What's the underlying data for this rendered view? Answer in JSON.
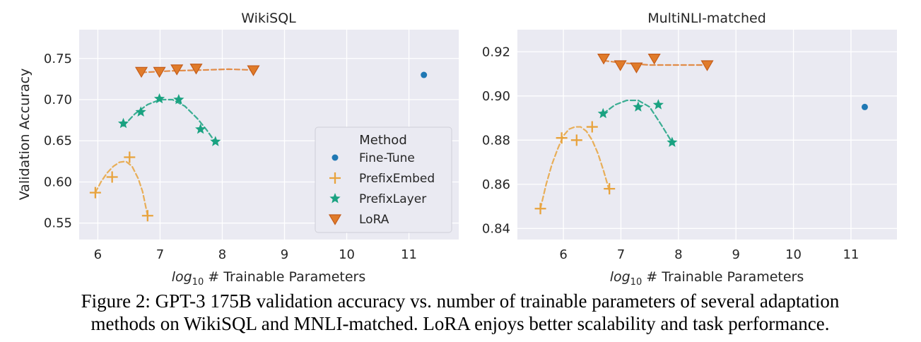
{
  "chart_data": [
    {
      "type": "scatter",
      "title": "WikiSQL",
      "xlabel_prefix": "log",
      "xlabel_sub": "10",
      "xlabel_rest": " # Trainable Parameters",
      "ylabel": "Validation Accuracy",
      "xlim": [
        5.7,
        11.8
      ],
      "ylim": [
        0.53,
        0.785
      ],
      "xticks": [
        6,
        7,
        8,
        9,
        10,
        11
      ],
      "yticks": [
        0.55,
        0.6,
        0.65,
        0.7,
        0.75
      ],
      "ytick_labels": [
        "0.55",
        "0.60",
        "0.65",
        "0.70",
        "0.75"
      ],
      "grid": true,
      "series": [
        {
          "name": "Fine-Tune",
          "marker": "dot",
          "x": [
            11.24
          ],
          "y": [
            0.73
          ],
          "fit": []
        },
        {
          "name": "PrefixEmbed",
          "marker": "plus",
          "x": [
            5.96,
            6.23,
            6.51,
            6.8
          ],
          "y": [
            0.587,
            0.606,
            0.63,
            0.559
          ],
          "fit": [
            [
              5.96,
              0.587
            ],
            [
              6.05,
              0.6
            ],
            [
              6.15,
              0.611
            ],
            [
              6.25,
              0.619
            ],
            [
              6.35,
              0.624
            ],
            [
              6.45,
              0.625
            ],
            [
              6.55,
              0.619
            ],
            [
              6.65,
              0.604
            ],
            [
              6.72,
              0.588
            ],
            [
              6.8,
              0.559
            ]
          ]
        },
        {
          "name": "PrefixLayer",
          "marker": "star",
          "x": [
            6.41,
            6.69,
            6.99,
            7.3,
            7.65,
            7.89
          ],
          "y": [
            0.671,
            0.685,
            0.701,
            0.7,
            0.664,
            0.649
          ],
          "fit": [
            [
              6.41,
              0.668
            ],
            [
              6.6,
              0.683
            ],
            [
              6.8,
              0.694
            ],
            [
              7.0,
              0.7
            ],
            [
              7.2,
              0.7
            ],
            [
              7.4,
              0.692
            ],
            [
              7.6,
              0.677
            ],
            [
              7.75,
              0.663
            ],
            [
              7.89,
              0.648
            ]
          ]
        },
        {
          "name": "LoRA",
          "marker": "triangle",
          "x": [
            6.7,
            6.99,
            7.27,
            7.58,
            8.5
          ],
          "y": [
            0.734,
            0.734,
            0.737,
            0.738,
            0.736
          ],
          "fit": [
            [
              6.7,
              0.733
            ],
            [
              7.2,
              0.735
            ],
            [
              7.7,
              0.736
            ],
            [
              8.1,
              0.737
            ],
            [
              8.5,
              0.736
            ]
          ]
        }
      ]
    },
    {
      "type": "scatter",
      "title": "MultiNLI-matched",
      "xlabel_prefix": "log",
      "xlabel_sub": "10",
      "xlabel_rest": " # Trainable Parameters",
      "ylabel": "",
      "xlim": [
        5.2,
        11.8
      ],
      "ylim": [
        0.835,
        0.93
      ],
      "xticks": [
        6,
        7,
        8,
        9,
        10,
        11
      ],
      "yticks": [
        0.84,
        0.86,
        0.88,
        0.9,
        0.92
      ],
      "ytick_labels": [
        "0.84",
        "0.86",
        "0.88",
        "0.90",
        "0.92"
      ],
      "grid": true,
      "series": [
        {
          "name": "Fine-Tune",
          "marker": "dot",
          "x": [
            11.24
          ],
          "y": [
            0.895
          ],
          "fit": []
        },
        {
          "name": "PrefixEmbed",
          "marker": "plus",
          "x": [
            5.6,
            5.97,
            6.23,
            6.5,
            6.8
          ],
          "y": [
            0.849,
            0.881,
            0.88,
            0.886,
            0.858
          ],
          "fit": [
            [
              5.6,
              0.849
            ],
            [
              5.7,
              0.86
            ],
            [
              5.8,
              0.869
            ],
            [
              5.9,
              0.876
            ],
            [
              6.0,
              0.882
            ],
            [
              6.1,
              0.885
            ],
            [
              6.2,
              0.886
            ],
            [
              6.3,
              0.886
            ],
            [
              6.4,
              0.884
            ],
            [
              6.5,
              0.88
            ],
            [
              6.6,
              0.874
            ],
            [
              6.7,
              0.866
            ],
            [
              6.8,
              0.857
            ]
          ]
        },
        {
          "name": "PrefixLayer",
          "marker": "star",
          "x": [
            6.69,
            7.3,
            7.65,
            7.89
          ],
          "y": [
            0.892,
            0.895,
            0.896,
            0.879
          ],
          "fit": [
            [
              6.69,
              0.892
            ],
            [
              6.9,
              0.896
            ],
            [
              7.1,
              0.898
            ],
            [
              7.3,
              0.898
            ],
            [
              7.5,
              0.895
            ],
            [
              7.7,
              0.887
            ],
            [
              7.89,
              0.879
            ]
          ]
        },
        {
          "name": "LoRA",
          "marker": "triangle",
          "x": [
            6.7,
            6.99,
            7.27,
            7.58,
            8.5
          ],
          "y": [
            0.917,
            0.914,
            0.913,
            0.917,
            0.914
          ],
          "fit": [
            [
              6.7,
              0.916
            ],
            [
              7.0,
              0.915
            ],
            [
              7.5,
              0.914
            ],
            [
              8.0,
              0.914
            ],
            [
              8.5,
              0.914
            ]
          ]
        }
      ]
    }
  ],
  "legend": {
    "title": "Method",
    "placement": "bottom-right of WikiSQL panel",
    "entries": [
      "Fine-Tune",
      "PrefixEmbed",
      "PrefixLayer",
      "LoRA"
    ]
  },
  "colors": {
    "Fine-Tune": "#1f78b4",
    "PrefixEmbed": "#e8a33d",
    "PrefixLayer": "#1aa281",
    "LoRA": "#e07b2a",
    "LoRA_edge": "#c45c1a",
    "axes_bg": "#eaeaf2",
    "grid": "#ffffff",
    "text": "#262626"
  },
  "caption": {
    "line1": "Figure 2: GPT-3 175B validation accuracy vs. number of trainable parameters of several adaptation",
    "line2": "methods on WikiSQL and MNLI-matched. LoRA enjoys better scalability and task performance."
  }
}
